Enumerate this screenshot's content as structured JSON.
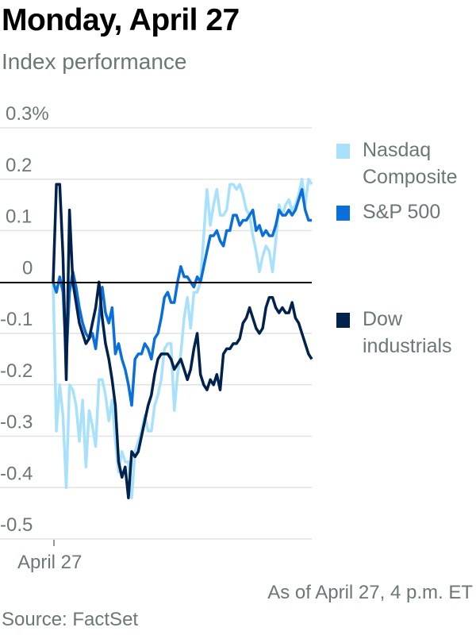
{
  "header": {
    "title": "Monday, April 27",
    "subtitle": "Index performance"
  },
  "footer": {
    "note": "As of April 27, 4 p.m. ET",
    "source": "Source: FactSet"
  },
  "chart_data": {
    "type": "line",
    "title": "Monday, April 27",
    "subtitle": "Index performance",
    "xlabel": "",
    "ylabel": "",
    "x_tick_labels": [
      "April 27"
    ],
    "y_ticks": [
      0.3,
      0.2,
      0.1,
      0,
      -0.1,
      -0.2,
      -0.3,
      -0.4,
      -0.5
    ],
    "y_tick_labels": [
      "0.3%",
      "0.2",
      "0.1",
      "0",
      "-0.1",
      "-0.2",
      "-0.3",
      "-0.4",
      "-0.5"
    ],
    "ylim": [
      -0.5,
      0.3
    ],
    "grid": true,
    "legend_position": "right",
    "series": [
      {
        "name": "Nasdaq Composite",
        "legend_lines": [
          "Nasdaq",
          "Composite"
        ],
        "color": "#a8e1fb",
        "values": [
          0.0,
          -0.29,
          -0.2,
          -0.26,
          -0.4,
          -0.2,
          -0.21,
          -0.24,
          -0.31,
          -0.23,
          -0.36,
          -0.25,
          -0.28,
          -0.32,
          -0.19,
          -0.19,
          -0.22,
          -0.27,
          -0.23,
          -0.31,
          -0.37,
          -0.33,
          -0.35,
          -0.35,
          -0.42,
          -0.33,
          -0.31,
          -0.29,
          -0.26,
          -0.29,
          -0.29,
          -0.24,
          -0.22,
          -0.19,
          -0.13,
          -0.12,
          -0.12,
          -0.25,
          -0.18,
          -0.14,
          -0.07,
          -0.03,
          -0.09,
          -0.02,
          -0.02,
          0.0,
          0.09,
          0.18,
          0.11,
          0.15,
          0.18,
          0.13,
          0.13,
          0.14,
          0.19,
          0.19,
          0.18,
          0.19,
          0.17,
          0.14,
          0.13,
          0.09,
          0.06,
          0.02,
          0.05,
          0.07,
          0.06,
          0.02,
          0.08,
          0.15,
          0.13,
          0.15,
          0.16,
          0.14,
          0.15,
          0.17,
          0.2,
          0.15,
          0.2,
          0.19
        ]
      },
      {
        "name": "S&P 500",
        "legend_lines": [
          "S&P 500"
        ],
        "color": "#0a6fdb",
        "values": [
          0.0,
          -0.02,
          0.01,
          -0.02,
          -0.15,
          -0.02,
          0.02,
          -0.01,
          -0.05,
          -0.08,
          -0.1,
          -0.11,
          -0.1,
          -0.13,
          -0.07,
          -0.01,
          -0.06,
          -0.08,
          -0.05,
          -0.14,
          -0.12,
          -0.15,
          -0.17,
          -0.2,
          -0.24,
          -0.15,
          -0.14,
          -0.14,
          -0.12,
          -0.13,
          -0.15,
          -0.11,
          -0.1,
          -0.07,
          -0.03,
          -0.02,
          -0.04,
          -0.04,
          0.0,
          0.03,
          0.01,
          0.01,
          0.0,
          -0.01,
          0.01,
          0.0,
          0.03,
          0.06,
          0.09,
          0.09,
          0.1,
          0.08,
          0.07,
          0.1,
          0.1,
          0.13,
          0.13,
          0.11,
          0.12,
          0.12,
          0.13,
          0.14,
          0.1,
          0.11,
          0.09,
          0.1,
          0.09,
          0.09,
          0.11,
          0.14,
          0.13,
          0.13,
          0.14,
          0.13,
          0.14,
          0.16,
          0.18,
          0.14,
          0.12,
          0.12
        ]
      },
      {
        "name": "Dow industrials",
        "legend_lines": [
          "Dow",
          "industrials"
        ],
        "color": "#00224d",
        "values": [
          0.0,
          0.19,
          0.19,
          0.05,
          -0.19,
          0.14,
          0.0,
          -0.04,
          -0.08,
          -0.1,
          -0.12,
          -0.11,
          -0.08,
          -0.05,
          0.0,
          -0.07,
          -0.12,
          -0.15,
          -0.19,
          -0.24,
          -0.35,
          -0.38,
          -0.36,
          -0.42,
          -0.33,
          -0.34,
          -0.33,
          -0.3,
          -0.27,
          -0.24,
          -0.22,
          -0.18,
          -0.15,
          -0.14,
          -0.14,
          -0.14,
          -0.15,
          -0.17,
          -0.16,
          -0.15,
          -0.17,
          -0.19,
          -0.17,
          -0.13,
          -0.1,
          -0.18,
          -0.2,
          -0.21,
          -0.19,
          -0.2,
          -0.18,
          -0.21,
          -0.14,
          -0.13,
          -0.13,
          -0.12,
          -0.12,
          -0.11,
          -0.08,
          -0.07,
          -0.05,
          -0.07,
          -0.09,
          -0.1,
          -0.09,
          -0.05,
          -0.03,
          -0.03,
          -0.05,
          -0.06,
          -0.05,
          -0.06,
          -0.06,
          -0.04,
          -0.07,
          -0.08,
          -0.1,
          -0.12,
          -0.14,
          -0.15
        ]
      }
    ]
  }
}
